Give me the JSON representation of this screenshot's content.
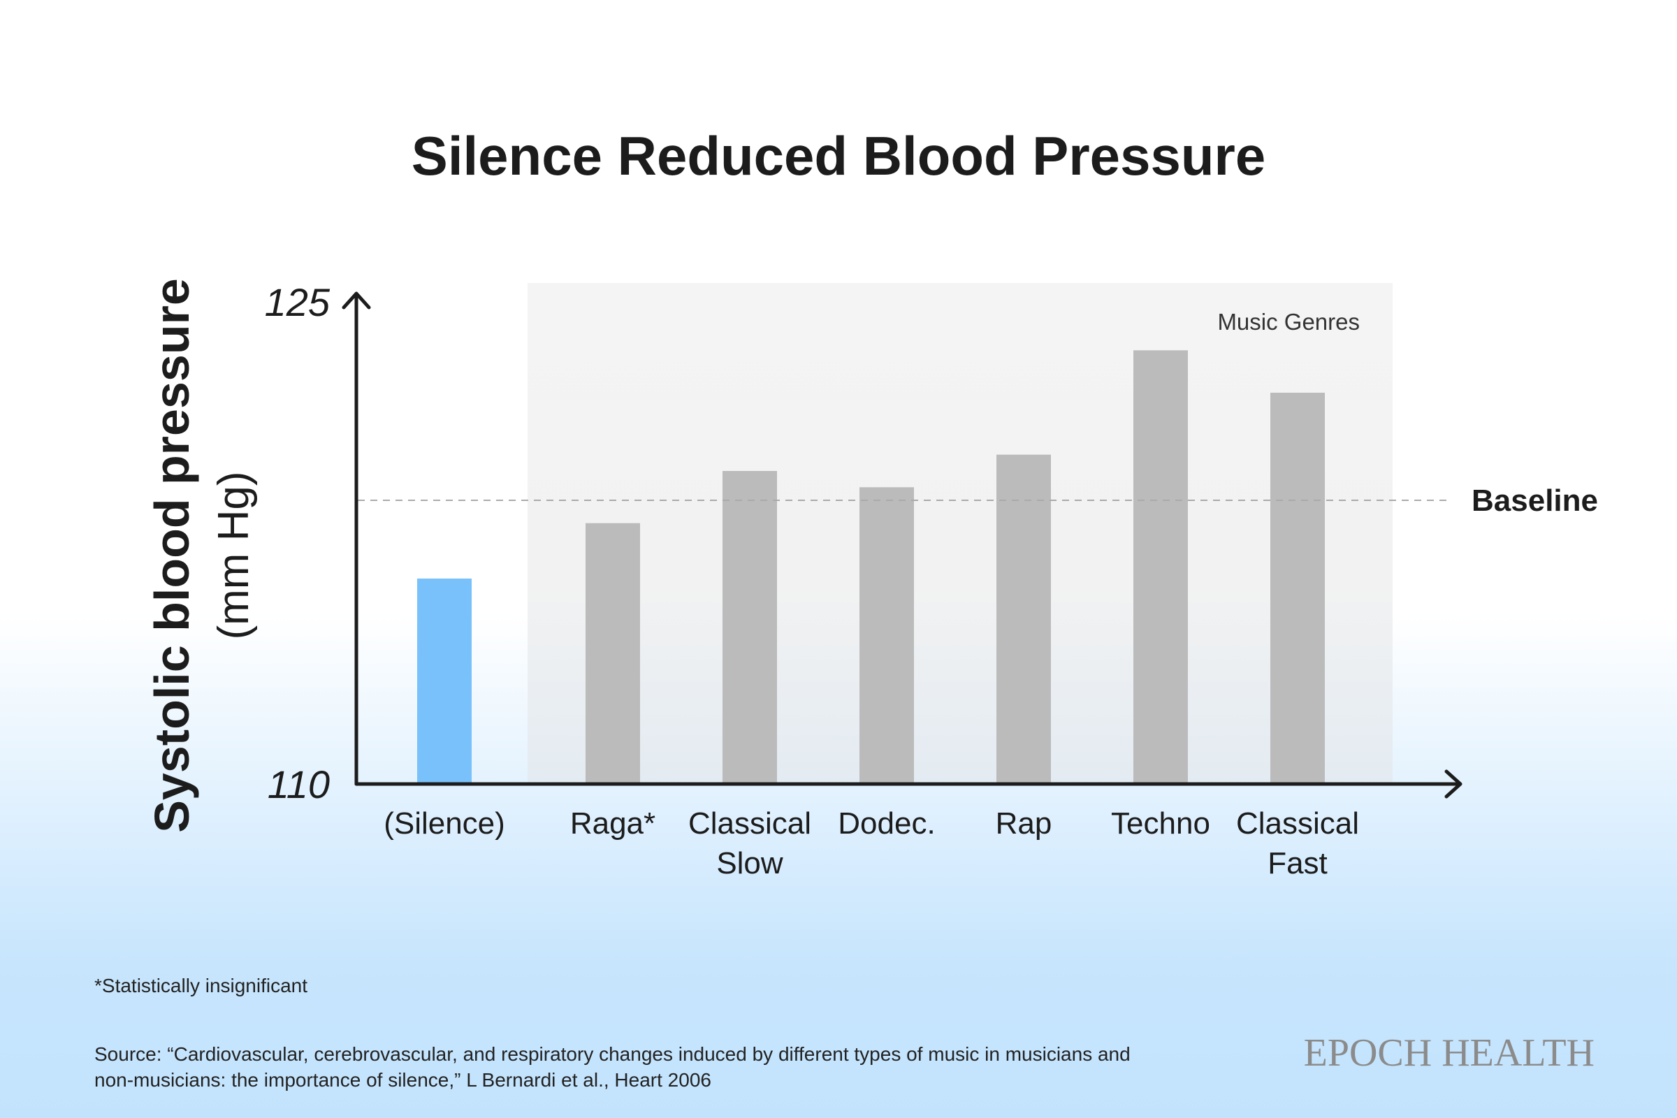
{
  "chart_data": {
    "type": "bar",
    "title": "Silence Reduced Blood Pressure",
    "ylabel": "Systolic blood pressure",
    "yunit": "(mm Hg)",
    "ylim": [
      110,
      125
    ],
    "yticks": [
      "110",
      "125"
    ],
    "categories": [
      [
        "(Silence)"
      ],
      [
        "Raga*"
      ],
      [
        "Classical",
        "Slow"
      ],
      [
        "Dodec."
      ],
      [
        "Rap"
      ],
      [
        "Techno"
      ],
      [
        "Classical",
        "Fast"
      ]
    ],
    "values": [
      116.3,
      118.0,
      119.6,
      119.1,
      120.1,
      123.3,
      122.0
    ],
    "highlight_index": 0,
    "colors": {
      "highlight": "#78c1fb",
      "bar": "#bbbbbb",
      "region": "#f3f3f3",
      "axis": "#1c1c1c",
      "baseline": "#aaaaaa"
    },
    "baseline": {
      "label": "Baseline",
      "value": 118.7
    },
    "region": {
      "label": "Music Genres",
      "from_index": 1,
      "to_index": 6
    }
  },
  "footnote": "*Statistically insignificant",
  "source": "Source: “Cardiovascular, cerebrovascular, and respiratory changes induced by different types of music in musicians and non-musicians: the importance of silence,” L Bernardi et al., Heart 2006",
  "logo": "EPOCH HEALTH"
}
